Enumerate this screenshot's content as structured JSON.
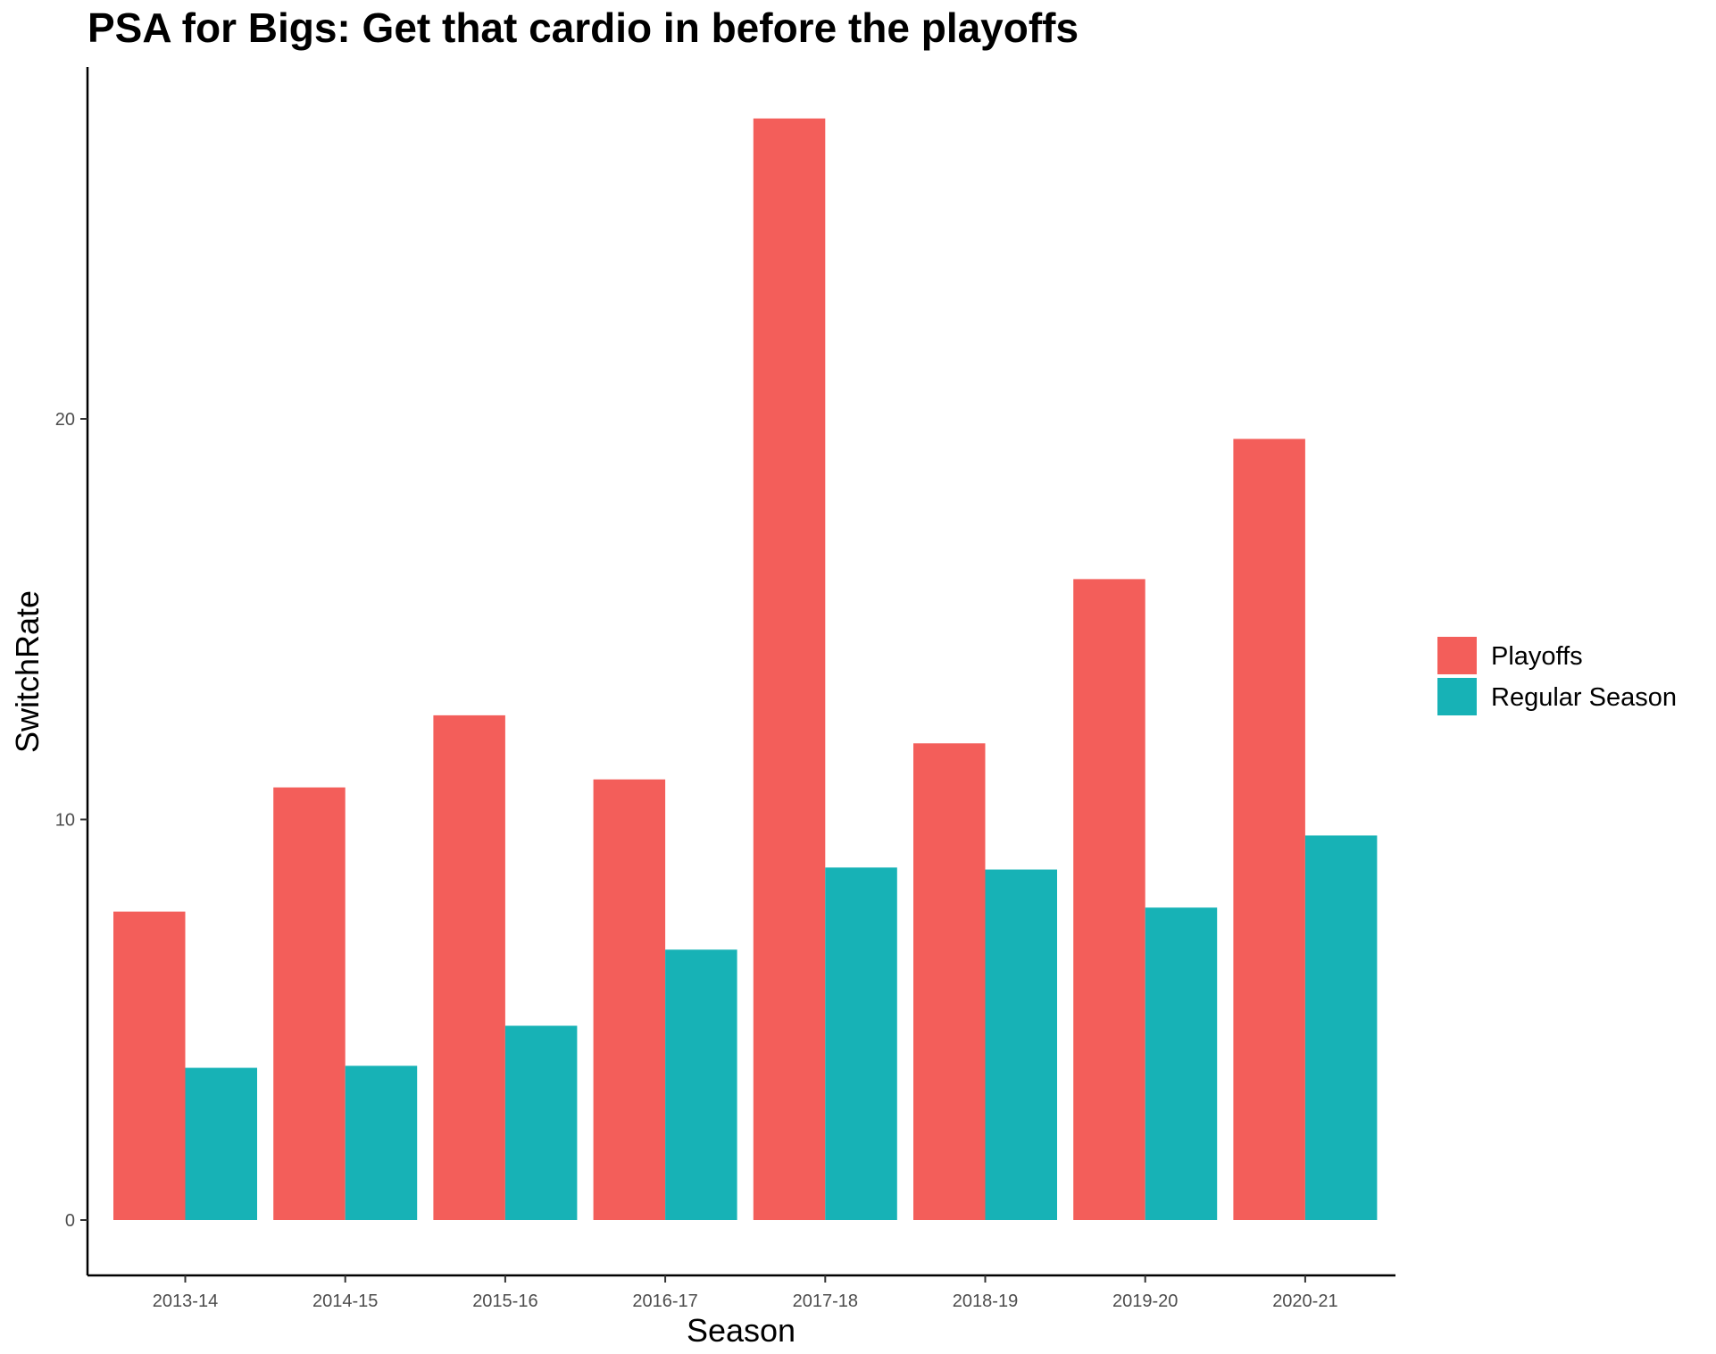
{
  "chart_data": {
    "type": "bar",
    "title": "PSA for Bigs: Get that cardio in before the playoffs",
    "xlabel": "Season",
    "ylabel": "SwitchRate",
    "categories": [
      "2013-14",
      "2014-15",
      "2015-16",
      "2016-17",
      "2017-18",
      "2018-19",
      "2019-20",
      "2020-21"
    ],
    "series": [
      {
        "name": "Playoffs",
        "color": "#F35E5A",
        "values": [
          7.7,
          10.8,
          12.6,
          11.0,
          27.5,
          11.9,
          16.0,
          19.5
        ]
      },
      {
        "name": "Regular Season",
        "color": "#17B2B6",
        "values": [
          3.8,
          3.85,
          4.85,
          6.75,
          8.8,
          8.75,
          7.8,
          9.6
        ]
      }
    ],
    "y_ticks": [
      "0",
      "10",
      "20"
    ],
    "ylim": [
      -1.4,
      28.8
    ],
    "grid": false,
    "legend_position": "right"
  }
}
